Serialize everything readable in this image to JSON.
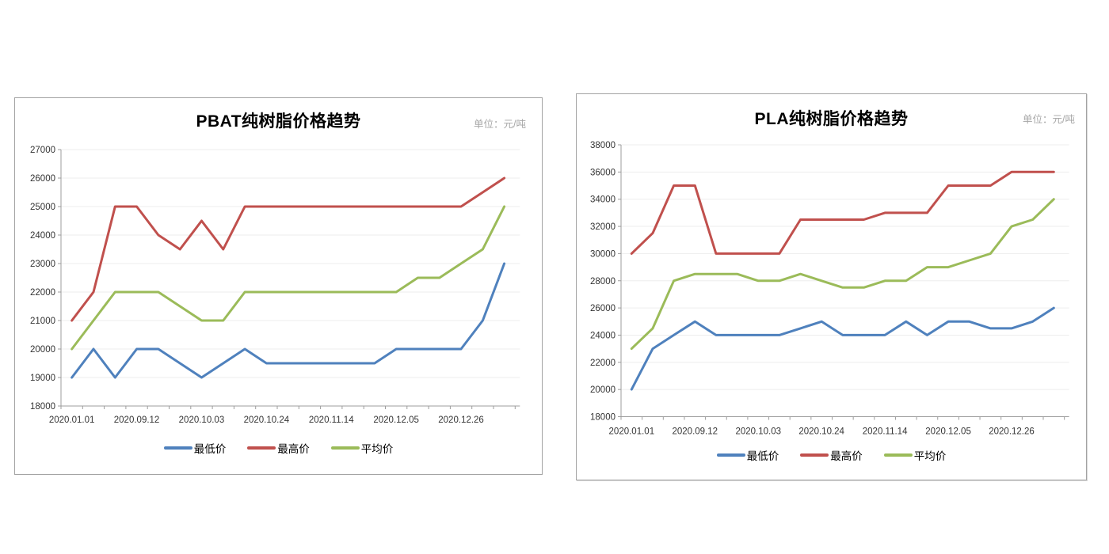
{
  "page": {
    "background": "#FFFFFF"
  },
  "colors": {
    "min_line": "#4F81BD",
    "max_line": "#C0504D",
    "avg_line": "#9BBB59",
    "gridline": "#EDEDED",
    "axis": "#9C9C9C",
    "tick_label": "#333333",
    "title_text": "#000000",
    "unit_text": "#A6A6A6",
    "panel_border": "#A3A3A3"
  },
  "chart_data": [
    {
      "id": "pbat",
      "type": "line",
      "title": "PBAT纯树脂价格趋势",
      "unit_label": "单位：元/吨",
      "xlabel": "",
      "ylabel": "",
      "ylim": [
        18000,
        27000
      ],
      "y_step": 1000,
      "y_tick_labels": [
        "18000",
        "19000",
        "20000",
        "21000",
        "22000",
        "23000",
        "24000",
        "25000",
        "26000",
        "27000"
      ],
      "x_tick_labels": [
        "2020.01.01",
        "2020.09.12",
        "2020.10.03",
        "2020.10.24",
        "2020.11.14",
        "2020.12.05",
        "2020.12.26"
      ],
      "x_tick_point_indices": [
        0,
        3,
        6,
        9,
        12,
        15,
        18
      ],
      "n_points": 21,
      "grid": true,
      "legend_position": "bottom",
      "series": [
        {
          "key": "min",
          "name": "最低价",
          "color": "#4F81BD",
          "values": [
            19000,
            20000,
            19000,
            20000,
            20000,
            19500,
            19000,
            19500,
            20000,
            19500,
            19500,
            19500,
            19500,
            19500,
            19500,
            20000,
            20000,
            20000,
            20000,
            21000,
            23000
          ]
        },
        {
          "key": "max",
          "name": "最高价",
          "color": "#C0504D",
          "values": [
            21000,
            22000,
            25000,
            25000,
            24000,
            23500,
            24500,
            23500,
            25000,
            25000,
            25000,
            25000,
            25000,
            25000,
            25000,
            25000,
            25000,
            25000,
            25000,
            25500,
            26000
          ]
        },
        {
          "key": "avg",
          "name": "平均价",
          "color": "#9BBB59",
          "values": [
            20000,
            21000,
            22000,
            22000,
            22000,
            21500,
            21000,
            21000,
            22000,
            22000,
            22000,
            22000,
            22000,
            22000,
            22000,
            22000,
            22500,
            22500,
            23000,
            23500,
            25000
          ]
        }
      ]
    },
    {
      "id": "pla",
      "type": "line",
      "title": "PLA纯树脂价格趋势",
      "unit_label": "单位：元/吨",
      "xlabel": "",
      "ylabel": "",
      "ylim": [
        18000,
        38000
      ],
      "y_step": 2000,
      "y_tick_labels": [
        "18000",
        "20000",
        "22000",
        "24000",
        "26000",
        "28000",
        "30000",
        "32000",
        "34000",
        "36000",
        "38000"
      ],
      "x_tick_labels": [
        "2020.01.01",
        "2020.09.12",
        "2020.10.03",
        "2020.10.24",
        "2020.11.14",
        "2020.12.05",
        "2020.12.26"
      ],
      "x_tick_point_indices": [
        0,
        3,
        6,
        9,
        12,
        15,
        18
      ],
      "n_points": 21,
      "grid": true,
      "legend_position": "bottom",
      "series": [
        {
          "key": "min",
          "name": "最低价",
          "color": "#4F81BD",
          "values": [
            20000,
            23000,
            24000,
            25000,
            24000,
            24000,
            24000,
            24000,
            24500,
            25000,
            24000,
            24000,
            24000,
            25000,
            24000,
            25000,
            25000,
            24500,
            24500,
            25000,
            26000
          ]
        },
        {
          "key": "max",
          "name": "最高价",
          "color": "#C0504D",
          "values": [
            30000,
            31500,
            35000,
            35000,
            30000,
            30000,
            30000,
            30000,
            32500,
            32500,
            32500,
            32500,
            33000,
            33000,
            33000,
            35000,
            35000,
            35000,
            36000,
            36000,
            36000
          ]
        },
        {
          "key": "avg",
          "name": "平均价",
          "color": "#9BBB59",
          "values": [
            23000,
            24500,
            28000,
            28500,
            28500,
            28500,
            28000,
            28000,
            28500,
            28000,
            27500,
            27500,
            28000,
            28000,
            29000,
            29000,
            29500,
            30000,
            32000,
            32500,
            34000
          ]
        }
      ]
    }
  ]
}
